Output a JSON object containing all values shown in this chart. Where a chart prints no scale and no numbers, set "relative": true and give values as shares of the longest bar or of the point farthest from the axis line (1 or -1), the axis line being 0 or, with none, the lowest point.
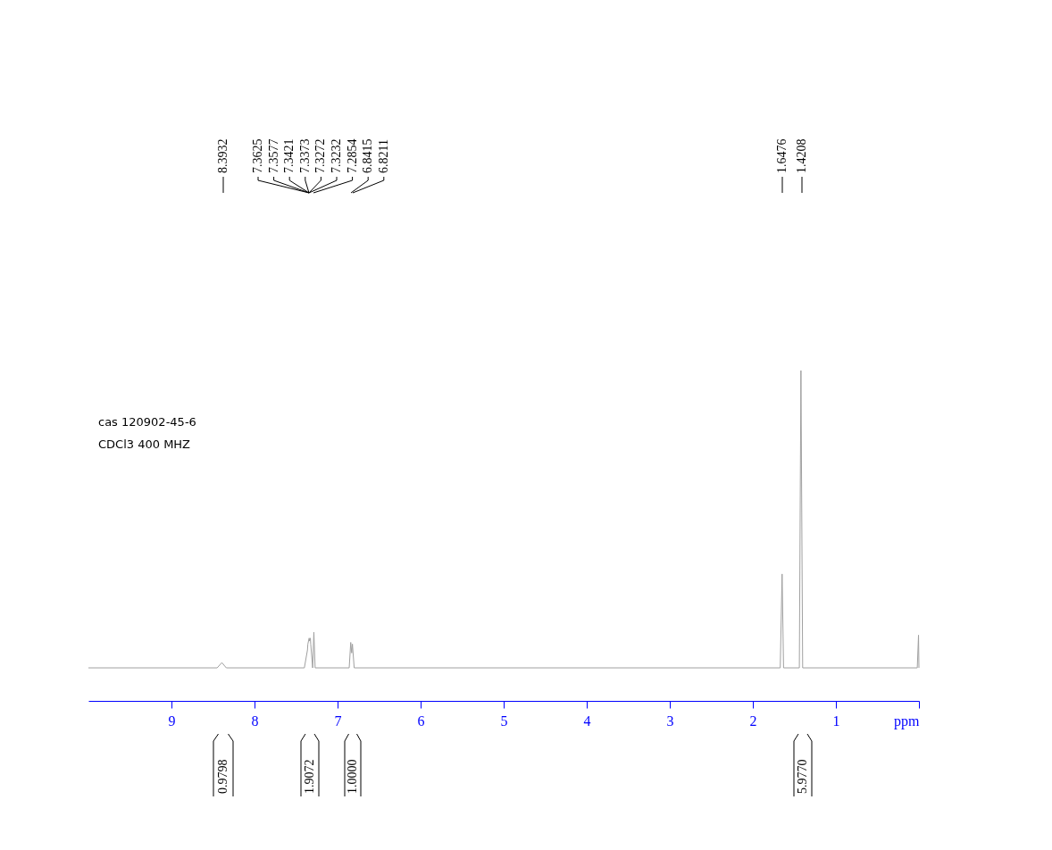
{
  "chart_data": {
    "type": "line",
    "relative": true,
    "xlim": [
      10,
      0
    ],
    "xticks": [
      9,
      8,
      7,
      6,
      5,
      4,
      3,
      2,
      1,
      {
        "value": 0,
        "label": "ppm"
      }
    ],
    "x": [
      10,
      8.45,
      8.3932,
      8.34,
      7.4,
      7.3625,
      7.3577,
      7.3421,
      7.3373,
      7.3272,
      7.3232,
      7.3,
      7.2854,
      7.27,
      6.86,
      6.8415,
      6.83,
      6.8211,
      6.8,
      1.67,
      1.6476,
      1.63,
      1.44,
      1.4208,
      1.4,
      0.02,
      0.005,
      0
    ],
    "series": [
      {
        "color": "#a0a0a0",
        "values": [
          0.1,
          0.1,
          0.116,
          0.1,
          0.1,
          0.154,
          0.172,
          0.19,
          0.181,
          0.19,
          0.172,
          0.1,
          0.208,
          0.1,
          0.1,
          0.177,
          0.145,
          0.172,
          0.1,
          0.1,
          0.384,
          0.1,
          0.1,
          1,
          0.1,
          0.1,
          0.199,
          0.1
        ]
      }
    ],
    "annotations": [
      "cas  120902-45-6",
      "CDCl3   400 MHZ",
      "8.3932",
      "7.3625",
      "7.3577",
      "7.3421",
      "7.3373",
      "7.3272",
      "7.3232",
      "7.2854",
      "6.8415",
      "6.8211",
      "1.6476",
      "1.4208",
      "0.9798",
      "1.9072",
      "1.0000",
      "5.9770"
    ]
  }
}
